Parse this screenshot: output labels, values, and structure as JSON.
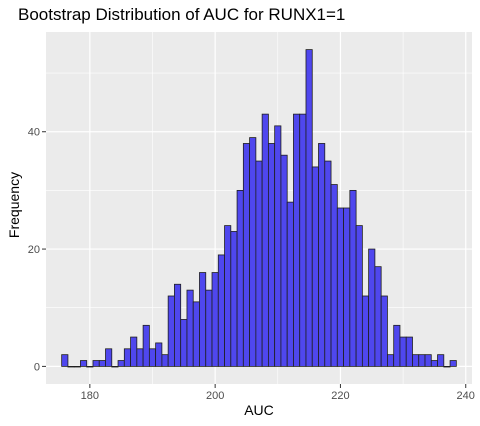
{
  "chart_data": {
    "type": "histogram",
    "title": "Bootstrap Distribution of AUC for RUNX1=1",
    "xlabel": "AUC",
    "ylabel": "Frequency",
    "xlim": [
      173,
      241
    ],
    "ylim": [
      -3,
      57
    ],
    "x_ticks": [
      180,
      200,
      220,
      240
    ],
    "y_ticks": [
      0,
      20,
      40
    ],
    "grid": true,
    "bin_width": 1,
    "bar_color": "#4f47ee",
    "bar_edge_color": "#1f1f1f",
    "panel_background": "#ebebeb",
    "bins": [
      {
        "x": 176,
        "count": 2
      },
      {
        "x": 177,
        "count": 0
      },
      {
        "x": 178,
        "count": 0
      },
      {
        "x": 179,
        "count": 1
      },
      {
        "x": 180,
        "count": 0
      },
      {
        "x": 181,
        "count": 1
      },
      {
        "x": 182,
        "count": 1
      },
      {
        "x": 183,
        "count": 3
      },
      {
        "x": 184,
        "count": 0
      },
      {
        "x": 185,
        "count": 1
      },
      {
        "x": 186,
        "count": 3
      },
      {
        "x": 187,
        "count": 5
      },
      {
        "x": 188,
        "count": 3
      },
      {
        "x": 189,
        "count": 7
      },
      {
        "x": 190,
        "count": 3
      },
      {
        "x": 191,
        "count": 4
      },
      {
        "x": 192,
        "count": 2
      },
      {
        "x": 193,
        "count": 12
      },
      {
        "x": 194,
        "count": 14
      },
      {
        "x": 195,
        "count": 8
      },
      {
        "x": 196,
        "count": 13
      },
      {
        "x": 197,
        "count": 11
      },
      {
        "x": 198,
        "count": 16
      },
      {
        "x": 199,
        "count": 13
      },
      {
        "x": 200,
        "count": 16
      },
      {
        "x": 201,
        "count": 19
      },
      {
        "x": 202,
        "count": 24
      },
      {
        "x": 203,
        "count": 23
      },
      {
        "x": 204,
        "count": 30
      },
      {
        "x": 205,
        "count": 38
      },
      {
        "x": 206,
        "count": 39
      },
      {
        "x": 207,
        "count": 35
      },
      {
        "x": 208,
        "count": 43
      },
      {
        "x": 209,
        "count": 38
      },
      {
        "x": 210,
        "count": 41
      },
      {
        "x": 211,
        "count": 36
      },
      {
        "x": 212,
        "count": 28
      },
      {
        "x": 213,
        "count": 43
      },
      {
        "x": 214,
        "count": 43
      },
      {
        "x": 215,
        "count": 54
      },
      {
        "x": 216,
        "count": 34
      },
      {
        "x": 217,
        "count": 38
      },
      {
        "x": 218,
        "count": 35
      },
      {
        "x": 219,
        "count": 31
      },
      {
        "x": 220,
        "count": 27
      },
      {
        "x": 221,
        "count": 27
      },
      {
        "x": 222,
        "count": 30
      },
      {
        "x": 223,
        "count": 24
      },
      {
        "x": 224,
        "count": 12
      },
      {
        "x": 225,
        "count": 20
      },
      {
        "x": 226,
        "count": 17
      },
      {
        "x": 227,
        "count": 12
      },
      {
        "x": 228,
        "count": 2
      },
      {
        "x": 229,
        "count": 7
      },
      {
        "x": 230,
        "count": 5
      },
      {
        "x": 231,
        "count": 5
      },
      {
        "x": 232,
        "count": 2
      },
      {
        "x": 233,
        "count": 2
      },
      {
        "x": 234,
        "count": 2
      },
      {
        "x": 235,
        "count": 1
      },
      {
        "x": 236,
        "count": 2
      },
      {
        "x": 237,
        "count": 0
      },
      {
        "x": 238,
        "count": 1
      }
    ]
  }
}
